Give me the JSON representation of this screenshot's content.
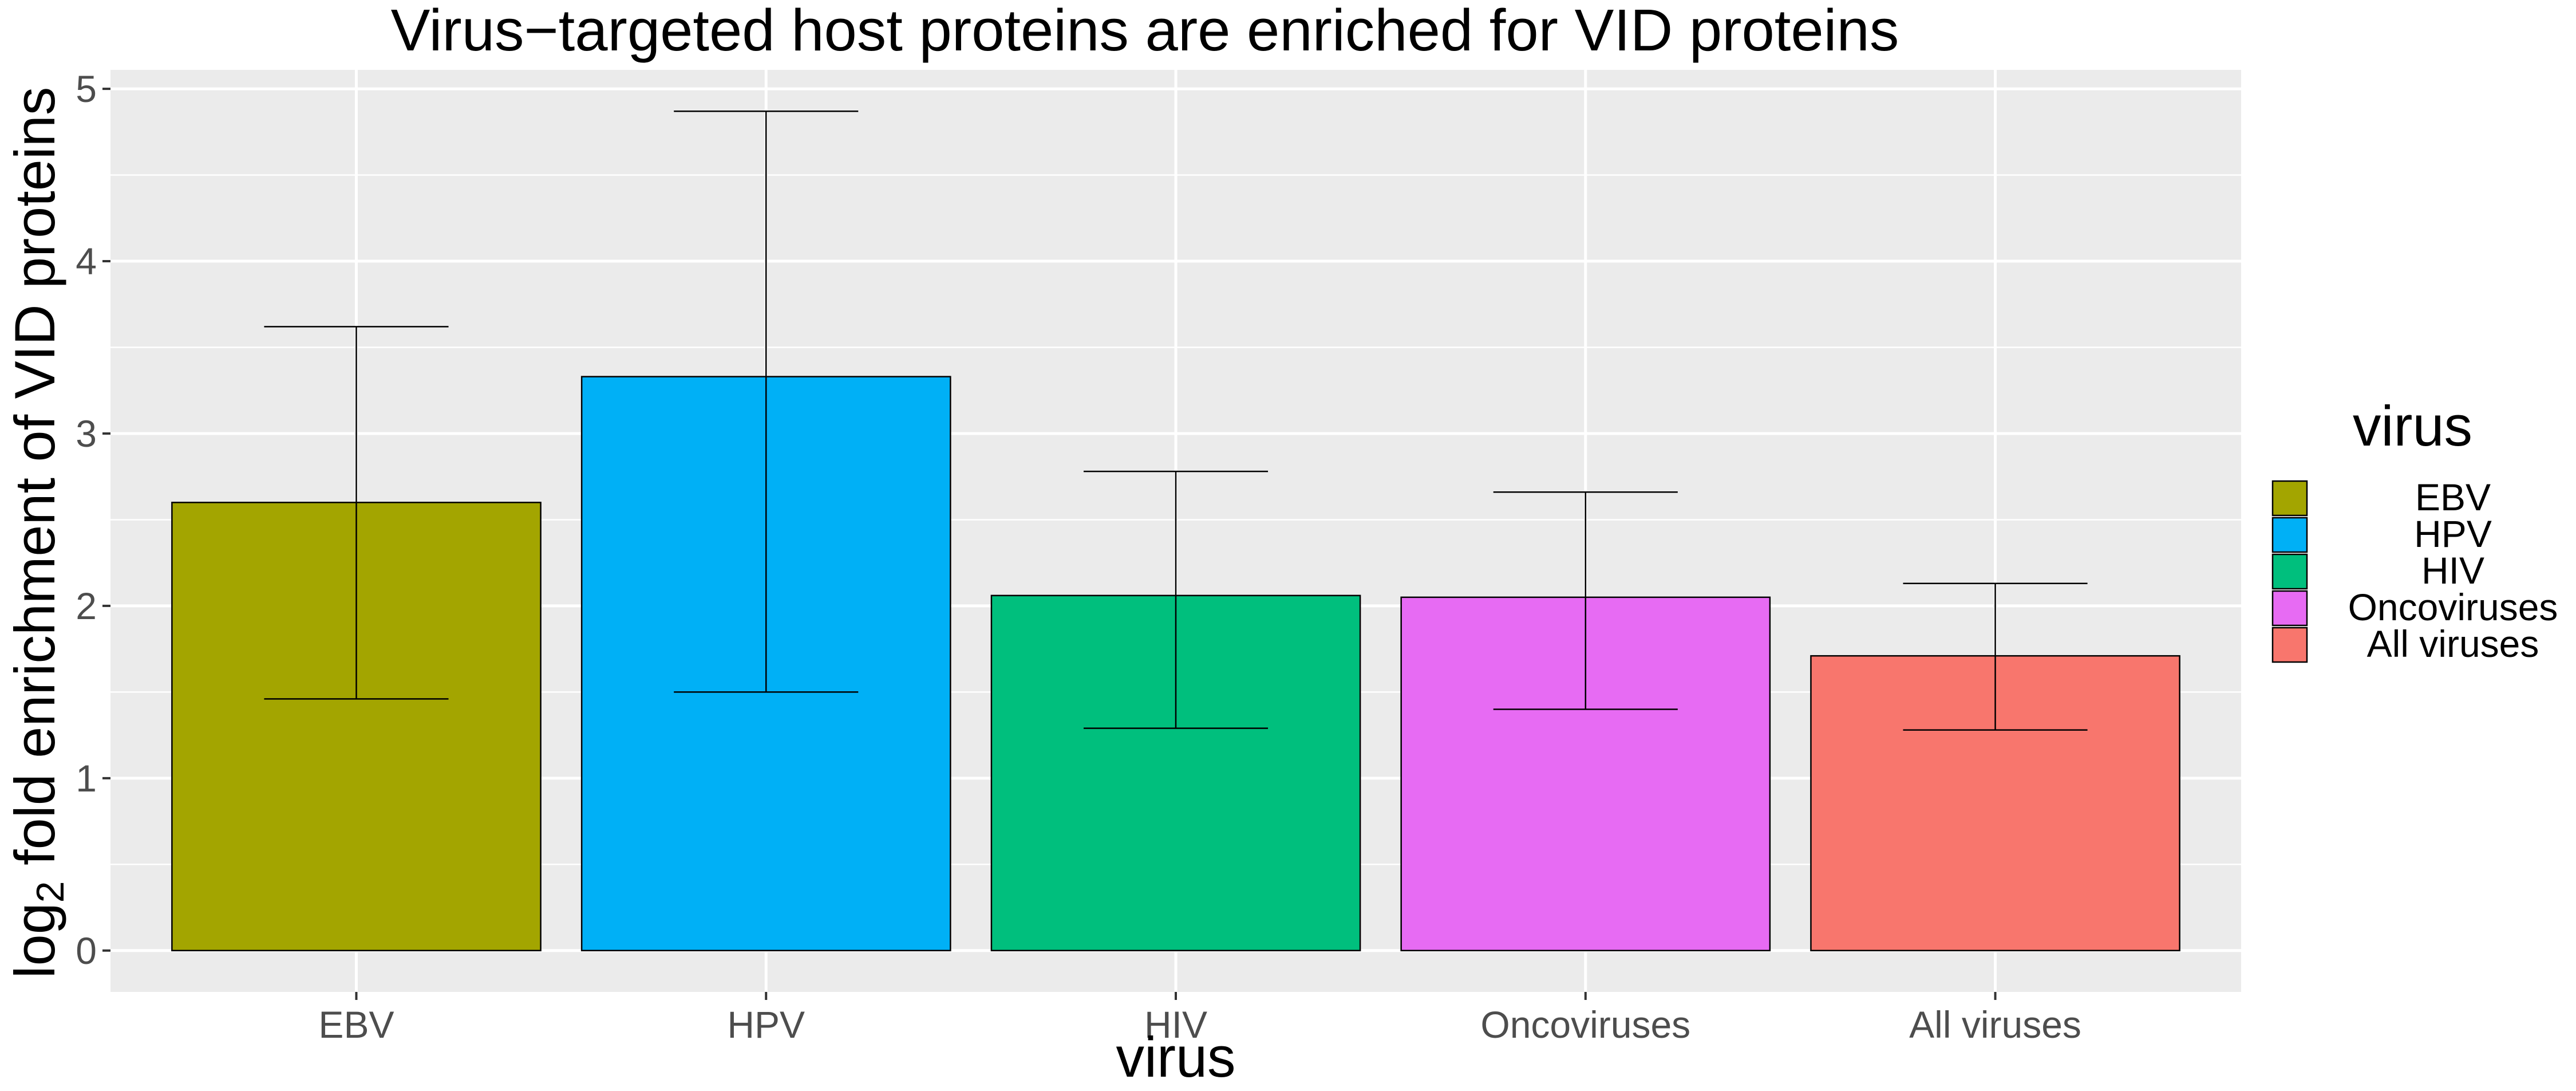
{
  "chart_data": {
    "type": "bar",
    "title": "Virus−targeted host proteins are enriched for VID proteins",
    "xlabel": "virus",
    "ylabel_prefix": "log",
    "ylabel_subscript": "2",
    "ylabel_suffix": " fold enrichment of VID proteins",
    "categories": [
      "EBV",
      "HPV",
      "HIV",
      "Oncoviruses",
      "All viruses"
    ],
    "values": [
      2.6,
      3.33,
      2.06,
      2.05,
      1.71
    ],
    "error_low": [
      1.46,
      1.5,
      1.29,
      1.4,
      1.28
    ],
    "error_high": [
      3.62,
      4.87,
      2.78,
      2.66,
      2.13
    ],
    "colors": [
      "#A3A500",
      "#00B0F6",
      "#00BF7D",
      "#E76BF3",
      "#F8766D"
    ],
    "yticks": [
      0,
      1,
      2,
      3,
      4,
      5
    ],
    "ylim": [
      -0.24,
      5.11
    ],
    "grid": true,
    "background": "#EBEBEB",
    "legend": {
      "title": "virus",
      "placement": "right",
      "entries": [
        "EBV",
        "HPV",
        "HIV",
        "Oncoviruses",
        "All viruses"
      ]
    }
  }
}
